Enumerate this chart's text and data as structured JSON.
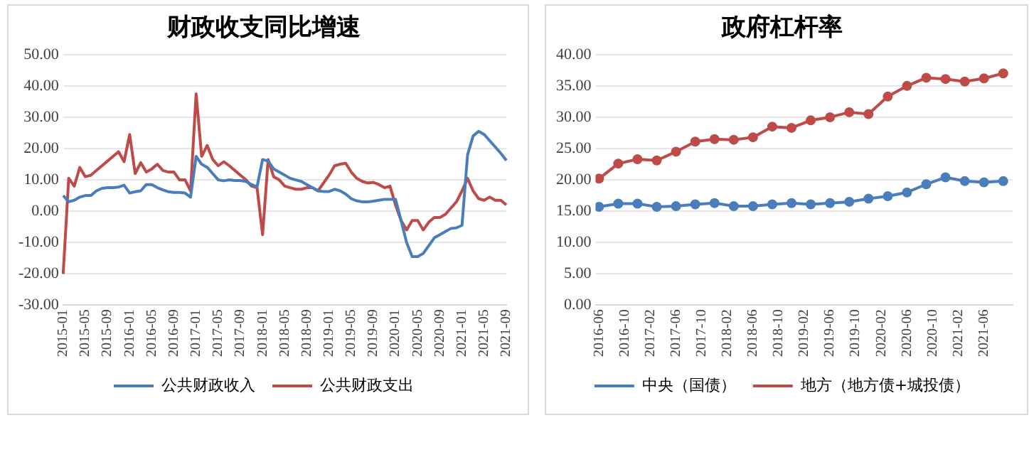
{
  "chart_data": [
    {
      "type": "line",
      "title": "财政收支同比增速",
      "categories": [
        "2015-01",
        null,
        null,
        null,
        "2015-05",
        null,
        null,
        null,
        "2015-09",
        null,
        null,
        null,
        "2016-01",
        null,
        null,
        null,
        "2016-05",
        null,
        null,
        null,
        "2016-09",
        null,
        null,
        null,
        "2017-01",
        null,
        null,
        null,
        "2017-05",
        null,
        null,
        null,
        "2017-09",
        null,
        null,
        null,
        "2018-01",
        null,
        null,
        null,
        "2018-05",
        null,
        null,
        null,
        "2018-09",
        null,
        null,
        null,
        "2019-01",
        null,
        null,
        null,
        "2019-05",
        null,
        null,
        null,
        "2019-09",
        null,
        null,
        null,
        "2020-01",
        null,
        null,
        null,
        "2020-05",
        null,
        null,
        null,
        "2020-09",
        null,
        null,
        null,
        "2021-01",
        null,
        null,
        null,
        "2021-05",
        null,
        null,
        null,
        "2021-09"
      ],
      "series": [
        {
          "name": "公共财政收入",
          "color": "#4a7ebb",
          "values": [
            5,
            3,
            3.5,
            4.5,
            5,
            5,
            6.5,
            7.3,
            7.5,
            7.5,
            7.7,
            8.3,
            5.8,
            6.2,
            6.5,
            8.5,
            8.5,
            7.5,
            6.8,
            6.2,
            6,
            6,
            5.8,
            4.5,
            17.5,
            15,
            14,
            12,
            10,
            9.7,
            10,
            9.8,
            9.8,
            9.5,
            8.5,
            7.8,
            16.5,
            16,
            13.5,
            12.5,
            11.5,
            10.5,
            10,
            9.5,
            8.5,
            7.5,
            6.5,
            6.3,
            6.3,
            7,
            6.5,
            5.5,
            4,
            3.3,
            3,
            3,
            3.2,
            3.5,
            3.8,
            3.8,
            3.8,
            -3,
            -10,
            -14.5,
            -14.5,
            -13.5,
            -11,
            -8.5,
            -7.5,
            -6.5,
            -5.5,
            -5.3,
            -4.5,
            18,
            24,
            25.5,
            24.5,
            22.5,
            20.5,
            18.5,
            16.2
          ]
        },
        {
          "name": "公共财政支出",
          "color": "#be4b48",
          "values": [
            -20,
            10.5,
            8,
            14,
            11,
            11.5,
            13,
            14.5,
            16,
            17.5,
            19,
            15.8,
            24.5,
            12,
            15.5,
            12.5,
            13.5,
            15,
            13,
            12.5,
            12.5,
            10,
            10,
            6.5,
            37.5,
            17.5,
            21,
            16.5,
            14.5,
            15.8,
            14.5,
            13,
            11.5,
            10,
            8,
            7.5,
            -7.5,
            16.5,
            11,
            10,
            8,
            7.5,
            7,
            7,
            7.5,
            7.5,
            6.5,
            9,
            11.5,
            14.5,
            15,
            15.3,
            12.5,
            10.5,
            9.5,
            9,
            9.2,
            8.5,
            7.5,
            8,
            2,
            -3,
            -6,
            -3,
            -3,
            -6,
            -3.5,
            -2,
            -2,
            -1,
            1,
            3,
            6.5,
            10.5,
            6.5,
            4,
            3.5,
            4.5,
            3.5,
            3.5,
            2
          ]
        }
      ],
      "ylim": [
        -30,
        50
      ],
      "yticks": [
        {
          "value": -30,
          "label": "-30.00"
        },
        {
          "value": -20,
          "label": "-20.00"
        },
        {
          "value": -10,
          "label": "-10.00"
        },
        {
          "value": 0,
          "label": "0.00"
        },
        {
          "value": 10,
          "label": "10.00"
        },
        {
          "value": 20,
          "label": "20.00"
        },
        {
          "value": 30,
          "label": "30.00"
        },
        {
          "value": 40,
          "label": "40.00"
        },
        {
          "value": 50,
          "label": "50.00"
        }
      ],
      "grid": "y",
      "legend": "bottom",
      "line_style": "solid"
    },
    {
      "type": "line",
      "title": "政府杠杆率",
      "x": [
        "2016-06",
        "2016-09",
        "2016-12",
        "2017-03",
        "2017-06",
        "2017-09",
        "2017-12",
        "2018-03",
        "2018-06",
        "2018-09",
        "2018-12",
        "2019-03",
        "2019-06",
        "2019-09",
        "2019-12",
        "2020-03",
        "2020-06",
        "2020-09",
        "2020-12",
        "2021-03",
        "2021-06",
        "2021-09"
      ],
      "series": [
        {
          "name": "中央（国债）",
          "color": "#4a7ebb",
          "values": [
            15.7,
            16.2,
            16.2,
            15.7,
            15.8,
            16.1,
            16.3,
            15.8,
            15.8,
            16.1,
            16.3,
            16.1,
            16.3,
            16.5,
            17.0,
            17.4,
            18.0,
            19.3,
            20.4,
            19.8,
            19.6,
            19.8
          ]
        },
        {
          "name": "地方（地方债+城投债）",
          "color": "#be4b48",
          "values": [
            20.2,
            22.6,
            23.3,
            23.1,
            24.5,
            26.1,
            26.5,
            26.4,
            26.8,
            28.5,
            28.3,
            29.5,
            30.0,
            30.8,
            30.5,
            33.3,
            35.0,
            36.3,
            36.1,
            35.7,
            36.2,
            37.0
          ]
        }
      ],
      "xlim": [
        "2016-05-15",
        "2021-10-15"
      ],
      "xticks": [
        "2016-06",
        "2016-10",
        "2017-02",
        "2017-06",
        "2017-10",
        "2018-02",
        "2018-06",
        "2018-10",
        "2019-02",
        "2019-06",
        "2019-10",
        "2020-02",
        "2020-06",
        "2020-10",
        "2021-02",
        "2021-06"
      ],
      "ylim": [
        0,
        40
      ],
      "yticks": [
        {
          "value": 0,
          "label": "0.00"
        },
        {
          "value": 5,
          "label": "5.00"
        },
        {
          "value": 10,
          "label": "10.00"
        },
        {
          "value": 15,
          "label": "15.00"
        },
        {
          "value": 20,
          "label": "20.00"
        },
        {
          "value": 25,
          "label": "25.00"
        },
        {
          "value": 30,
          "label": "30.00"
        },
        {
          "value": 35,
          "label": "35.00"
        },
        {
          "value": 40,
          "label": "40.00"
        }
      ],
      "grid": "y",
      "legend": "bottom",
      "marker": "circle",
      "line_style": "solid"
    }
  ]
}
